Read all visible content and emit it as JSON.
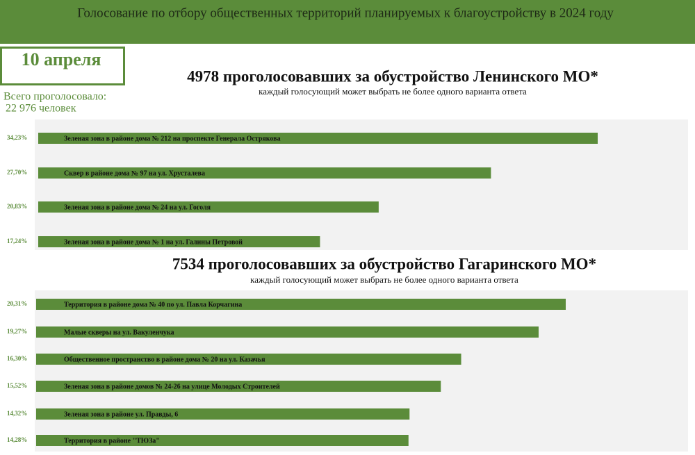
{
  "header": {
    "title": "Голосование по отбору общественных территорий планируемых к благоустройству в 2024 году",
    "date": "10 апреля",
    "total_label": "Всего проголосовало:",
    "total": "22 976 человек"
  },
  "chart_data": [
    {
      "type": "bar",
      "title": "4978 проголосовавших за обустройство Ленинского МО*",
      "subtitle": "каждый голосующий может выбрать не более одного варианта ответа",
      "categories": [
        "Зеленая зона в районе дома № 212 на проспекте Генерала Острякова",
        "Сквер в районе дома № 97 на ул. Хрусталева",
        "Зеленая зона в районе дома № 24 на ул. Гоголя",
        "Зеленая зона в районе дома № 1 на ул. Галины Петровой"
      ],
      "values": [
        34.23,
        27.7,
        20.83,
        17.24
      ],
      "value_labels": [
        "34,23%",
        "27,70%",
        "20,83%",
        "17,24%"
      ],
      "color": "#5b8c3a"
    },
    {
      "type": "bar",
      "title": "7534 проголосовавших за обустройство Гагаринского МО*",
      "subtitle": "каждый голосующий может выбрать не более одного варианта ответа",
      "categories": [
        "Территория в районе дома № 40 по ул. Павла Корчагина",
        "Малые скверы на ул. Вакуленчука",
        "Общественное пространство в районе дома № 20 на ул. Казачья",
        "Зеленая зона в районе домов № 24-26 на улице Молодых Строителей",
        "Зеленая зона в районе ул. Правды, 6",
        "Территория в районе \"ТЮЗа\""
      ],
      "values": [
        20.31,
        19.27,
        16.3,
        15.52,
        14.32,
        14.28
      ],
      "value_labels": [
        "20,31%",
        "19,27%",
        "16,30%",
        "15,52%",
        "14,32%",
        "14,28%"
      ],
      "color": "#5b8c3a"
    }
  ]
}
